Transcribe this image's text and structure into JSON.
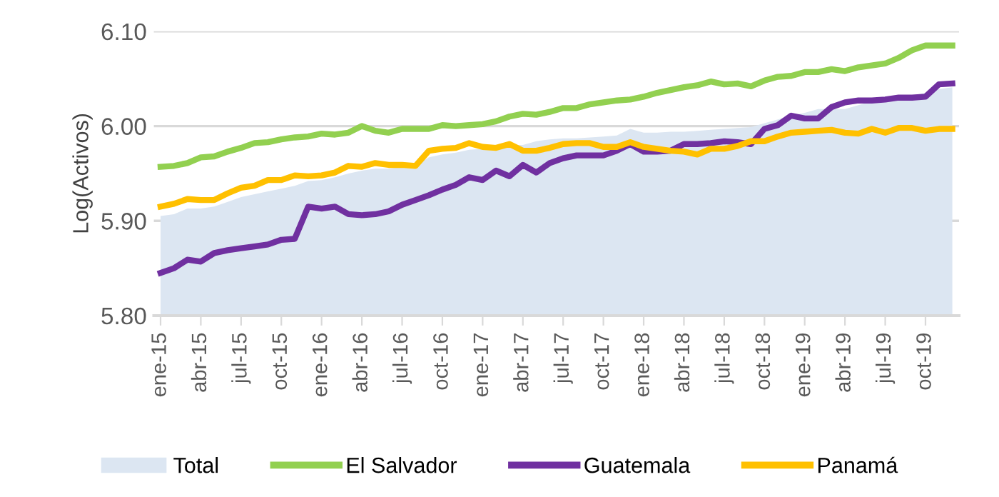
{
  "chart_data": {
    "type": "line",
    "ylabel": "Log(Activos)",
    "categories": [
      "ene-15",
      null,
      null,
      "abr-15",
      null,
      null,
      "jul-15",
      null,
      null,
      "oct-15",
      null,
      null,
      "ene-16",
      null,
      null,
      "abr-16",
      null,
      null,
      "jul-16",
      null,
      null,
      "oct-16",
      null,
      null,
      "ene-17",
      null,
      null,
      "abr-17",
      null,
      null,
      "jul-17",
      null,
      null,
      "oct-17",
      null,
      null,
      "ene-18",
      null,
      null,
      "abr-18",
      null,
      null,
      "jul-18",
      null,
      null,
      "oct-18",
      null,
      null,
      "ene-19",
      null,
      null,
      "abr-19",
      null,
      null,
      "jul-19",
      null,
      null,
      "oct-19",
      null,
      null
    ],
    "series": [
      {
        "name": "Total",
        "type": "area",
        "color": "#dce6f2",
        "values": [
          5.905,
          5.907,
          5.913,
          5.913,
          5.915,
          5.92,
          5.925,
          5.928,
          5.931,
          5.934,
          5.937,
          5.942,
          5.943,
          5.946,
          5.95,
          5.953,
          5.955,
          5.955,
          5.957,
          5.958,
          5.967,
          5.97,
          5.972,
          5.975,
          5.976,
          5.977,
          5.98,
          5.98,
          5.984,
          5.986,
          5.987,
          5.987,
          5.988,
          5.989,
          5.99,
          5.997,
          5.993,
          5.993,
          5.994,
          5.994,
          5.995,
          5.996,
          5.997,
          5.998,
          5.999,
          6.003,
          6.007,
          6.011,
          6.014,
          6.018,
          6.018,
          6.018,
          6.022,
          6.026,
          6.028,
          6.03,
          6.032,
          6.035,
          6.039,
          6.041
        ]
      },
      {
        "name": "El Salvador",
        "color": "#92d050",
        "values": [
          5.957,
          5.958,
          5.961,
          5.967,
          5.968,
          5.973,
          5.977,
          5.982,
          5.983,
          5.986,
          5.988,
          5.989,
          5.992,
          5.991,
          5.993,
          6.0,
          5.995,
          5.993,
          5.997,
          5.997,
          5.997,
          6.001,
          6.0,
          6.001,
          6.002,
          6.005,
          6.01,
          6.013,
          6.012,
          6.015,
          6.019,
          6.019,
          6.023,
          6.025,
          6.027,
          6.028,
          6.031,
          6.035,
          6.038,
          6.041,
          6.043,
          6.047,
          6.044,
          6.045,
          6.042,
          6.048,
          6.052,
          6.053,
          6.057,
          6.057,
          6.06,
          6.058,
          6.062,
          6.064,
          6.066,
          6.072,
          6.08,
          6.085,
          6.085,
          6.085
        ]
      },
      {
        "name": "Guatemala",
        "color": "#7030a0",
        "values": [
          5.845,
          5.85,
          5.859,
          5.857,
          5.866,
          5.869,
          5.871,
          5.873,
          5.875,
          5.88,
          5.881,
          5.915,
          5.913,
          5.915,
          5.907,
          5.906,
          5.907,
          5.91,
          5.917,
          5.922,
          5.927,
          5.933,
          5.938,
          5.946,
          5.943,
          5.953,
          5.947,
          5.959,
          5.951,
          5.961,
          5.966,
          5.969,
          5.969,
          5.969,
          5.974,
          5.981,
          5.973,
          5.973,
          5.974,
          5.981,
          5.981,
          5.982,
          5.984,
          5.983,
          5.981,
          5.997,
          6.001,
          6.011,
          6.008,
          6.008,
          6.02,
          6.025,
          6.027,
          6.027,
          6.028,
          6.03,
          6.03,
          6.031,
          6.044,
          6.045
        ]
      },
      {
        "name": "Panamá",
        "color": "#ffc000",
        "values": [
          5.915,
          5.918,
          5.923,
          5.922,
          5.922,
          5.929,
          5.935,
          5.937,
          5.943,
          5.943,
          5.948,
          5.947,
          5.948,
          5.951,
          5.958,
          5.957,
          5.961,
          5.959,
          5.959,
          5.958,
          5.974,
          5.976,
          5.977,
          5.982,
          5.978,
          5.977,
          5.981,
          5.974,
          5.974,
          5.977,
          5.981,
          5.982,
          5.982,
          5.978,
          5.978,
          5.983,
          5.978,
          5.976,
          5.974,
          5.973,
          5.97,
          5.976,
          5.976,
          5.979,
          5.984,
          5.984,
          5.989,
          5.993,
          5.994,
          5.995,
          5.996,
          5.993,
          5.992,
          5.997,
          5.993,
          5.998,
          5.998,
          5.995,
          5.997,
          5.997
        ]
      }
    ],
    "ylim": [
      5.8,
      6.1
    ],
    "yticks": [
      {
        "value": 5.8,
        "label": "5.80"
      },
      {
        "value": 5.9,
        "label": "5.90"
      },
      {
        "value": 6.0,
        "label": "6.00"
      },
      {
        "value": 6.1,
        "label": "6.10"
      }
    ],
    "grid": "y",
    "legend": "bottom",
    "marker": "none",
    "line_style": "solid"
  }
}
